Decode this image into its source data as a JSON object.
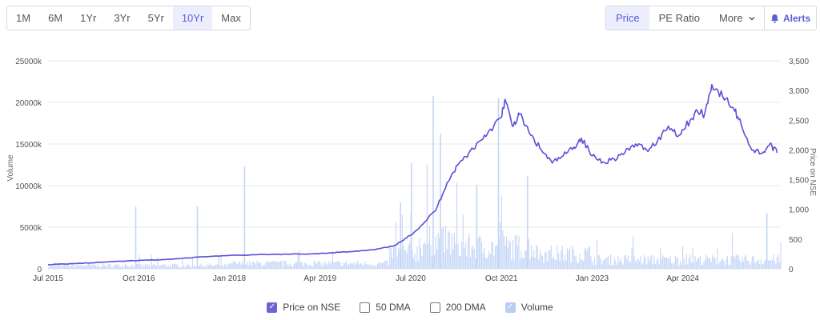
{
  "toolbar": {
    "ranges": [
      "1M",
      "6M",
      "1Yr",
      "3Yr",
      "5Yr",
      "10Yr",
      "Max"
    ],
    "active_range": "10Yr",
    "metrics": [
      "Price",
      "PE Ratio",
      "More"
    ],
    "active_metric": "Price",
    "alerts_label": "Alerts"
  },
  "legend": {
    "price_on_nse": "Price on NSE",
    "dma50": "50 DMA",
    "dma200": "200 DMA",
    "volume": "Volume"
  },
  "colors": {
    "price_line": "#5a4fd8",
    "volume_bar": "#c4d5f7",
    "grid": "#e8e8e8",
    "accent": "#5c5cd6"
  },
  "chart_data": {
    "type": "line",
    "x_tick_labels": [
      "Jul 2015",
      "Oct 2016",
      "Jan 2018",
      "Apr 2019",
      "Jul 2020",
      "Oct 2021",
      "Jan 2023",
      "Apr 2024"
    ],
    "y_left": {
      "label": "Volume",
      "ticks": [
        "0",
        "5000k",
        "10000k",
        "15000k",
        "20000k",
        "25000k"
      ],
      "range": [
        0,
        25000
      ]
    },
    "y_right": {
      "label": "Price on NSE",
      "ticks": [
        "0",
        "500",
        "1,000",
        "1,500",
        "2,000",
        "2,500",
        "3,000",
        "3,500"
      ],
      "range": [
        0,
        3500
      ]
    },
    "grid": true,
    "legend_position": "bottom",
    "price_series": {
      "name": "Price on NSE",
      "x": [
        2015.5,
        2015.8,
        2016.1,
        2016.4,
        2016.75,
        2017.0,
        2017.3,
        2017.6,
        2017.9,
        2018.2,
        2018.5,
        2018.8,
        2019.1,
        2019.4,
        2019.7,
        2020.0,
        2020.25,
        2020.4,
        2020.55,
        2020.7,
        2020.85,
        2021.0,
        2021.15,
        2021.3,
        2021.45,
        2021.6,
        2021.75,
        2021.8,
        2021.9,
        2022.0,
        2022.15,
        2022.3,
        2022.45,
        2022.6,
        2022.75,
        2022.85,
        2023.0,
        2023.15,
        2023.3,
        2023.45,
        2023.6,
        2023.75,
        2023.9,
        2024.05,
        2024.2,
        2024.35,
        2024.45,
        2024.55,
        2024.65,
        2024.8,
        2024.95,
        2025.05,
        2025.2,
        2025.35,
        2025.45,
        2025.55
      ],
      "values": [
        70,
        85,
        100,
        120,
        140,
        150,
        170,
        200,
        220,
        230,
        240,
        245,
        250,
        270,
        290,
        320,
        380,
        480,
        620,
        800,
        1000,
        1450,
        1750,
        1950,
        2150,
        2350,
        2550,
        2850,
        2400,
        2600,
        2250,
        2000,
        1780,
        1900,
        2050,
        2200,
        1900,
        1800,
        1850,
        1950,
        2100,
        2000,
        2150,
        2400,
        2250,
        2500,
        2650,
        2600,
        3100,
        2900,
        2700,
        2450,
        2000,
        1950,
        2100,
        1950
      ]
    },
    "volume_series": {
      "name": "Volume",
      "unit": "k",
      "peaks": [
        {
          "x": 2016.7,
          "value": 7500
        },
        {
          "x": 2017.55,
          "value": 7500
        },
        {
          "x": 2018.2,
          "value": 12300
        },
        {
          "x": 2020.35,
          "value": 8000
        },
        {
          "x": 2020.5,
          "value": 12700
        },
        {
          "x": 2020.8,
          "value": 20800
        },
        {
          "x": 2020.9,
          "value": 16200
        },
        {
          "x": 2021.4,
          "value": 10100
        },
        {
          "x": 2021.7,
          "value": 20500
        },
        {
          "x": 2022.1,
          "value": 11200
        },
        {
          "x": 2025.4,
          "value": 6700
        }
      ]
    }
  }
}
